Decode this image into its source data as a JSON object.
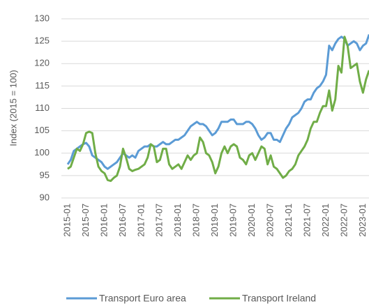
{
  "chart_data": {
    "type": "line",
    "y_label": "Index (2015 = 100)",
    "categories": [
      "2015-01",
      null,
      null,
      null,
      null,
      null,
      "2015-07",
      null,
      null,
      null,
      null,
      null,
      "2016-01",
      null,
      null,
      null,
      null,
      null,
      "2016-07",
      null,
      null,
      null,
      null,
      null,
      "2017-01",
      null,
      null,
      null,
      null,
      null,
      "2017-07",
      null,
      null,
      null,
      null,
      null,
      "2018-01",
      null,
      null,
      null,
      null,
      null,
      "2018-07",
      null,
      null,
      null,
      null,
      null,
      "2019-01",
      null,
      null,
      null,
      null,
      null,
      "2019-07",
      null,
      null,
      null,
      null,
      null,
      "2020-01",
      null,
      null,
      null,
      null,
      null,
      "2020-07",
      null,
      null,
      null,
      null,
      null,
      "2021-01",
      null,
      null,
      null,
      null,
      null,
      "2021-07",
      null,
      null,
      null,
      null,
      null,
      "2022-01",
      null,
      null,
      null,
      null,
      null,
      "2022-07",
      null,
      null,
      null,
      null,
      null,
      "2023-01",
      null,
      null
    ],
    "series": [
      {
        "name": "Transport Euro area",
        "color": "#5b9bd5",
        "values": [
          97.5,
          98.5,
          100.5,
          101,
          101.5,
          102,
          102.3,
          101.5,
          99.5,
          99,
          98.5,
          98,
          97,
          96.5,
          97,
          97.5,
          98,
          99,
          100,
          99.5,
          99,
          99.5,
          99,
          100.5,
          101,
          101.5,
          101.5,
          102,
          101.5,
          101.5,
          102,
          102.5,
          102,
          102,
          102.5,
          103,
          103,
          103.5,
          104,
          105,
          106,
          106.5,
          107,
          106.5,
          106.5,
          106,
          105,
          104,
          104.5,
          105.5,
          107,
          107,
          107,
          107.5,
          107.5,
          106.5,
          106.5,
          106.5,
          107,
          107,
          106.5,
          105.5,
          104,
          103,
          103.5,
          104.5,
          104.5,
          103,
          103,
          102.5,
          104,
          105.5,
          106.5,
          108,
          108.5,
          109,
          110,
          111.5,
          112,
          112,
          113.5,
          114.5,
          115,
          116,
          117.5,
          124,
          123,
          124.5,
          125.5,
          126,
          125.5,
          124,
          124.5,
          125,
          124.5,
          123,
          124,
          124.5,
          126.5
        ]
      },
      {
        "name": "Transport Ireland",
        "color": "#70ad47",
        "values": [
          96.5,
          97,
          99,
          101,
          100.5,
          102,
          104.5,
          104.8,
          104.5,
          100,
          97,
          96,
          95.5,
          94,
          93.8,
          94.5,
          95,
          97,
          101,
          99,
          96.5,
          96,
          96.3,
          96.5,
          97,
          97.5,
          99,
          102,
          101.5,
          98,
          98.5,
          101,
          101,
          97.5,
          96.5,
          97,
          97.5,
          96.5,
          98,
          99.5,
          98.5,
          99.5,
          100,
          103.5,
          102.5,
          100,
          99.5,
          98,
          95.5,
          97,
          100,
          101.5,
          100,
          101.5,
          102,
          101.5,
          99,
          98.5,
          97.5,
          99.5,
          100,
          98.5,
          100,
          101.5,
          101,
          97.5,
          99.5,
          97,
          96.5,
          95.5,
          94.5,
          95,
          96,
          96.5,
          97.5,
          99.5,
          100.5,
          101.5,
          103,
          105.5,
          107,
          107,
          109,
          110.5,
          110.5,
          114,
          109.5,
          112,
          119.5,
          118,
          126,
          124,
          119,
          119.5,
          120,
          116,
          113.5,
          116.5,
          118.5
        ]
      }
    ],
    "ylim": [
      90,
      130
    ],
    "yticks": [
      90,
      95,
      100,
      105,
      110,
      115,
      120,
      125,
      130
    ],
    "grid": true,
    "legend": "bottom"
  }
}
